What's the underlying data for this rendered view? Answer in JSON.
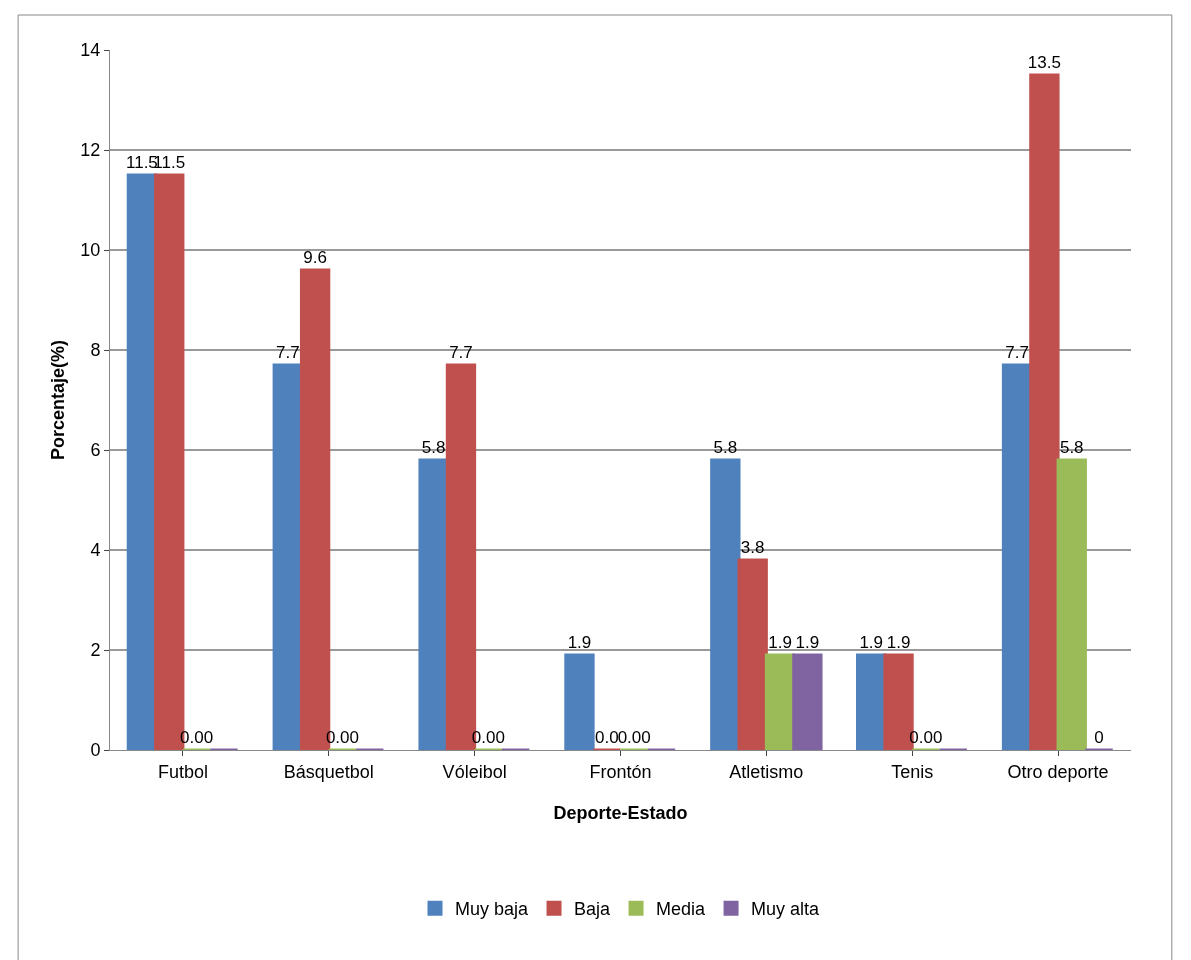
{
  "chart_data": {
    "type": "bar",
    "xlabel": "Deporte-Estado",
    "ylabel": "Porcentaje(%)",
    "categories": [
      "Futbol",
      "Básquetbol",
      "Vóleibol",
      "Frontón",
      "Atletismo",
      "Tenis",
      "Otro deporte"
    ],
    "series": [
      {
        "name": "Muy baja",
        "color": "#4f81bd",
        "values": [
          11.5,
          7.7,
          5.8,
          1.9,
          5.8,
          1.9,
          7.7
        ],
        "value_labels": [
          "11.5",
          "7.7",
          "5.8",
          "1.9",
          "5.8",
          "1.9",
          "7.7"
        ]
      },
      {
        "name": "Baja",
        "color": "#c0504d",
        "values": [
          11.5,
          9.6,
          7.7,
          0,
          3.8,
          1.9,
          13.5
        ],
        "value_labels": [
          "11.5",
          "9.6",
          "7.7",
          "0.0",
          "3.8",
          "1.9",
          "13.5"
        ]
      },
      {
        "name": "Media",
        "color": "#9bbb59",
        "values": [
          0,
          0,
          0,
          0,
          1.9,
          0,
          5.8
        ],
        "value_labels": [
          "0.00",
          "0.00",
          "0.00",
          "0.00",
          "1.9",
          "0.00",
          "5.8"
        ]
      },
      {
        "name": "Muy alta",
        "color": "#8064a2",
        "values": [
          0,
          0,
          0,
          0,
          1.9,
          0,
          0
        ],
        "value_labels": [
          null,
          null,
          null,
          null,
          "1.9",
          null,
          "0"
        ]
      }
    ],
    "ylim": [
      0,
      14
    ],
    "yticks": [
      0,
      2,
      4,
      6,
      8,
      10,
      12,
      14
    ],
    "grid": "y",
    "legend": "bottom"
  }
}
